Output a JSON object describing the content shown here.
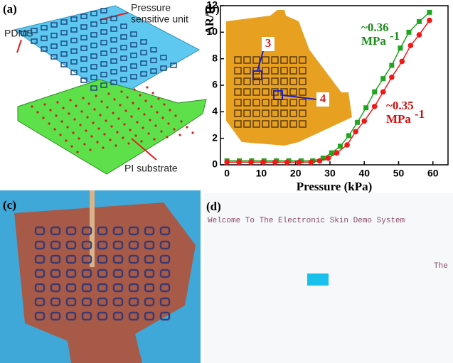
{
  "panels": {
    "a": {
      "label": "(a)",
      "pdms": "PDMS",
      "unit_line1": "Pressure",
      "unit_line2": "sensitive unit",
      "substrate": "PI substrate"
    },
    "b": {
      "label": "(b)",
      "inset_3": "3",
      "inset_4": "4"
    },
    "c": {
      "label": "(c)"
    },
    "d": {
      "label": "(d)",
      "welcome": "Welcome To The Electronic Skin Demo System",
      "scroll": "The"
    }
  },
  "chart_data": {
    "type": "line",
    "xlabel": "Pressure (kPa)",
    "ylabel": "ΔR/R",
    "xlim": [
      -1.9,
      64.4
    ],
    "xticks": [
      0,
      10,
      20,
      30,
      40,
      50,
      60
    ],
    "ylim": [
      0,
      12
    ],
    "yticks": [
      0,
      2,
      4,
      6,
      8,
      10,
      12
    ],
    "annotations": [
      {
        "text": "~0.36",
        "unit": "MPa",
        "exp": "-1",
        "color": "#1a8a1a"
      },
      {
        "text": "~0.35",
        "unit": "MPa",
        "exp": "-1",
        "color": "#d01010"
      }
    ],
    "series": [
      {
        "name": "green",
        "color": "#1fa51f",
        "marker": "square",
        "x": [
          0,
          3.6,
          7.2,
          10.8,
          14.4,
          18,
          21.6,
          25,
          28,
          30.5,
          33,
          35.5,
          38,
          40.5,
          43,
          45.5,
          48,
          50.5,
          53,
          56,
          59
        ],
        "values": [
          0.3,
          0.3,
          0.3,
          0.3,
          0.3,
          0.3,
          0.3,
          0.3,
          0.5,
          0.9,
          1.4,
          2.2,
          3.2,
          4.3,
          5.5,
          6.5,
          7.5,
          8.8,
          10,
          10.8,
          11.5
        ]
      },
      {
        "name": "red",
        "color": "#f01818",
        "marker": "circle",
        "x": [
          0,
          3.5,
          7,
          10.5,
          14,
          17.5,
          21,
          24.5,
          27,
          29.5,
          32,
          35,
          37.5,
          40,
          43,
          45.5,
          48,
          51,
          53.5,
          56,
          59
        ],
        "values": [
          0.2,
          0.2,
          0.2,
          0.2,
          0.2,
          0.2,
          0.2,
          0.2,
          0.3,
          0.5,
          0.9,
          1.5,
          2.5,
          3.3,
          4.4,
          5.5,
          6.6,
          7.8,
          9,
          9.8,
          10.9
        ]
      }
    ]
  }
}
